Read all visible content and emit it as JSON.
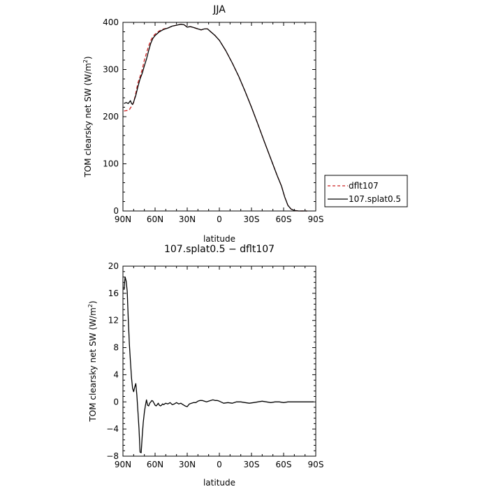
{
  "chart_data": [
    {
      "type": "line",
      "title": "JJA",
      "xlabel": "latitude",
      "ylabel": "TOM clearsky net SW (W/m²)",
      "ylabel_main": "TOM clearsky net SW (W/m",
      "ylabel_sup": "2",
      "ylabel_close": ")",
      "xlim": [
        90,
        -90
      ],
      "ylim": [
        0,
        400
      ],
      "yticks": [
        0,
        100,
        200,
        300,
        400
      ],
      "xticks": [
        {
          "value": 90,
          "label": "90N"
        },
        {
          "value": 60,
          "label": "60N"
        },
        {
          "value": 30,
          "label": "30N"
        },
        {
          "value": 0,
          "label": "0"
        },
        {
          "value": -30,
          "label": "30S"
        },
        {
          "value": -60,
          "label": "60S"
        },
        {
          "value": -90,
          "label": "90S"
        }
      ],
      "legend": {
        "placement": "right"
      },
      "series": [
        {
          "name": "dflt107",
          "color": "#cc2222",
          "dash": true,
          "x": [
            89,
            86,
            84,
            82,
            80,
            78,
            76,
            74,
            72,
            70,
            68,
            66,
            64,
            62,
            60,
            56,
            52,
            48,
            44,
            40,
            36,
            33,
            30,
            27,
            24,
            20,
            17,
            14,
            11,
            8,
            4,
            0,
            -6,
            -12,
            -18,
            -24,
            -30,
            -36,
            -42,
            -48,
            -54,
            -58,
            -61,
            -64,
            -67,
            -70,
            -74,
            -78,
            -82
          ],
          "y": [
            212,
            213,
            215,
            222,
            230,
            250,
            272,
            285,
            300,
            320,
            335,
            350,
            362,
            370,
            375,
            382,
            386,
            388,
            392,
            394,
            396,
            395,
            390,
            391,
            389,
            386,
            384,
            386,
            386,
            380,
            372,
            362,
            340,
            314,
            286,
            254,
            220,
            184,
            147,
            111,
            75,
            53,
            30,
            12,
            4,
            1,
            0,
            0,
            0
          ]
        },
        {
          "name": "107.splat0.5",
          "color": "#000000",
          "dash": false,
          "x": [
            89,
            87,
            85,
            84,
            83,
            82,
            81,
            80,
            78,
            76,
            74,
            72,
            70,
            68,
            66,
            64,
            62,
            60,
            56,
            52,
            48,
            44,
            40,
            36,
            33,
            30,
            27,
            24,
            20,
            17,
            14,
            11,
            8,
            4,
            0,
            -6,
            -12,
            -18,
            -24,
            -30,
            -36,
            -42,
            -48,
            -54,
            -58,
            -61,
            -64,
            -67,
            -70,
            -74,
            -78,
            -82
          ],
          "y": [
            228,
            230,
            228,
            231,
            234,
            228,
            226,
            231,
            245,
            264,
            280,
            292,
            308,
            322,
            340,
            356,
            366,
            372,
            380,
            385,
            388,
            392,
            394,
            396,
            395,
            390,
            391,
            389,
            386,
            384,
            386,
            386,
            380,
            372,
            362,
            340,
            314,
            286,
            254,
            220,
            184,
            147,
            111,
            75,
            53,
            30,
            12,
            4,
            1,
            0,
            0,
            0
          ]
        }
      ]
    },
    {
      "type": "line",
      "title": "107.splat0.5 − dflt107",
      "xlabel": "latitude",
      "ylabel": "TOM clearsky net SW (W/m²)",
      "ylabel_main": "TOM clearsky net SW (W/m",
      "ylabel_sup": "2",
      "ylabel_close": ")",
      "xlim": [
        90,
        -90
      ],
      "ylim": [
        -8,
        20
      ],
      "yticks": [
        -8,
        -4,
        0,
        4,
        8,
        12,
        16,
        20
      ],
      "xticks": [
        {
          "value": 90,
          "label": "90N"
        },
        {
          "value": 60,
          "label": "60N"
        },
        {
          "value": 30,
          "label": "30N"
        },
        {
          "value": 0,
          "label": "0"
        },
        {
          "value": -30,
          "label": "30S"
        },
        {
          "value": -60,
          "label": "60S"
        },
        {
          "value": -90,
          "label": "90S"
        }
      ],
      "series": [
        {
          "color": "#000000",
          "dash": false,
          "x": [
            89,
            88,
            87,
            86,
            85,
            84,
            83,
            82,
            81,
            80,
            79,
            78,
            77,
            76,
            75,
            74,
            73,
            72,
            71,
            70,
            69,
            68,
            67,
            66,
            65,
            64,
            63,
            62,
            61,
            60,
            59,
            58,
            57,
            56,
            55,
            54,
            53,
            52,
            50,
            48,
            46,
            44,
            42,
            40,
            38,
            36,
            34,
            32,
            30,
            28,
            26,
            24,
            22,
            20,
            18,
            16,
            14,
            12,
            10,
            8,
            6,
            4,
            2,
            0,
            -4,
            -8,
            -12,
            -16,
            -20,
            -24,
            -28,
            -32,
            -36,
            -40,
            -44,
            -48,
            -52,
            -56,
            -60,
            -64,
            -68,
            -72,
            -76,
            -80,
            -84,
            -88
          ],
          "y": [
            16.5,
            18.4,
            17.8,
            16.3,
            12.0,
            8.5,
            6.0,
            3.5,
            2.0,
            1.5,
            2.2,
            2.7,
            1.0,
            -1.5,
            -4.0,
            -7.4,
            -7.5,
            -5.0,
            -3.0,
            -1.5,
            -0.5,
            0.3,
            -0.5,
            -0.6,
            -0.2,
            0.0,
            0.2,
            0.1,
            -0.2,
            -0.5,
            -0.6,
            -0.4,
            -0.2,
            -0.5,
            -0.6,
            -0.5,
            -0.3,
            -0.4,
            -0.2,
            -0.3,
            -0.1,
            -0.4,
            -0.3,
            -0.1,
            -0.3,
            -0.2,
            -0.4,
            -0.6,
            -0.7,
            -0.3,
            -0.2,
            -0.1,
            -0.1,
            0.1,
            0.2,
            0.2,
            0.1,
            0.0,
            0.1,
            0.2,
            0.3,
            0.2,
            0.2,
            0.1,
            -0.2,
            -0.1,
            -0.2,
            0.0,
            0.0,
            -0.1,
            -0.2,
            -0.1,
            0.0,
            0.1,
            0.0,
            -0.1,
            0.0,
            0.0,
            -0.1,
            0.0,
            0.0,
            0.0,
            0.0,
            0.0,
            0.0,
            0.0
          ]
        }
      ]
    }
  ]
}
